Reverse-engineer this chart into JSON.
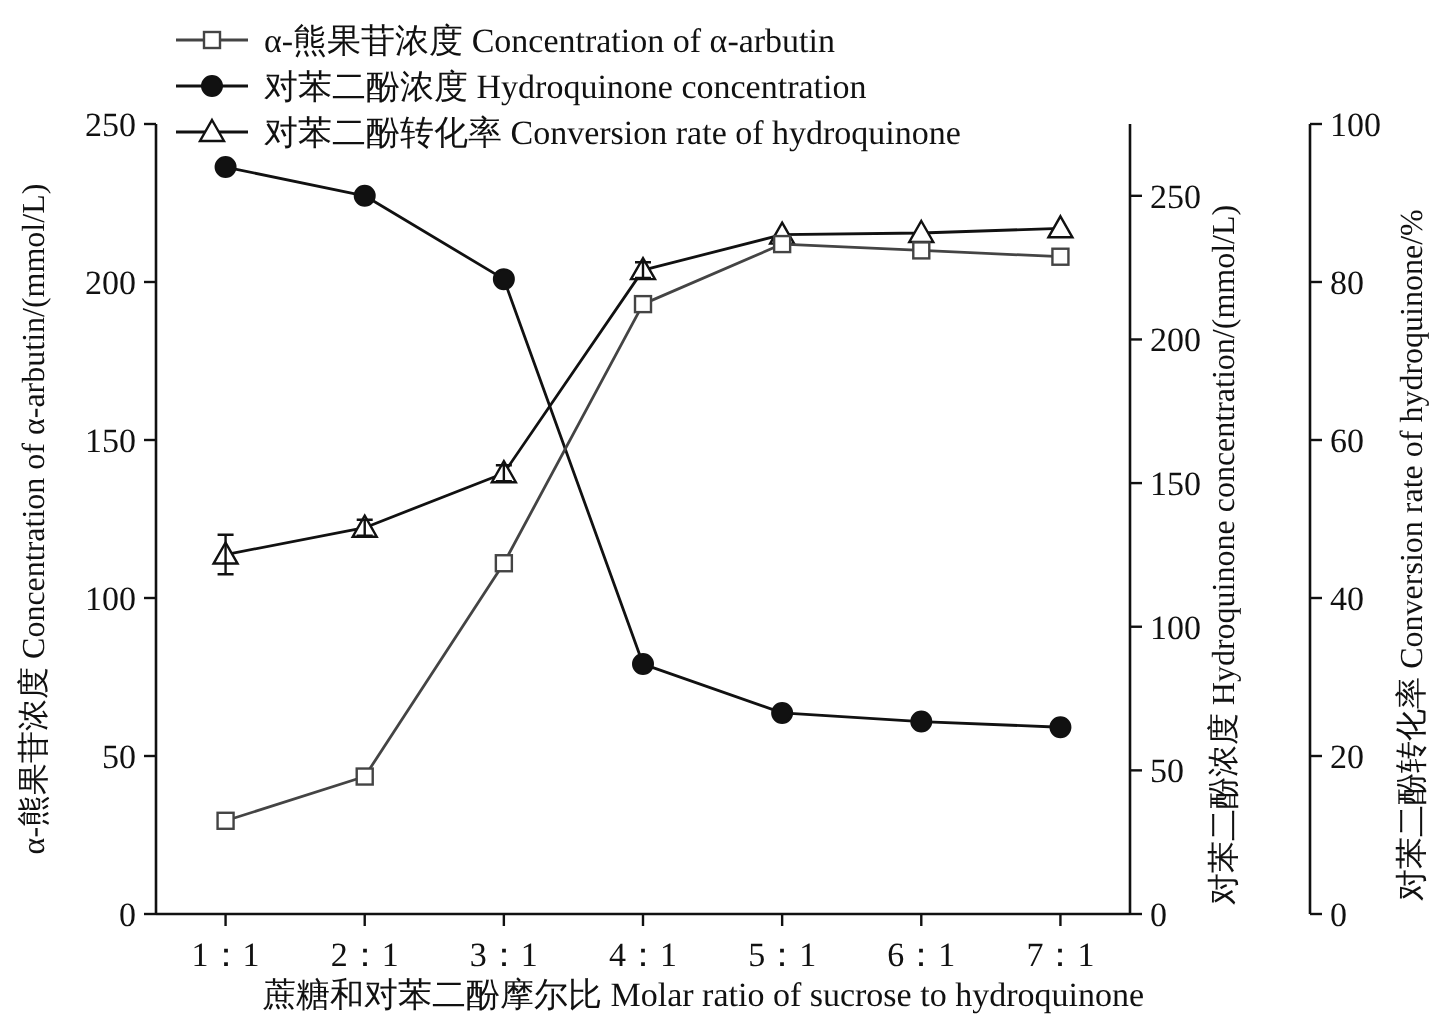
{
  "chart_data": {
    "type": "line",
    "categories": [
      "1：1",
      "2：1",
      "3：1",
      "4：1",
      "5：1",
      "6：1",
      "7：1"
    ],
    "xlabel": "蔗糖和对苯二酚摩尔比 Molar ratio of sucrose to hydroquinone",
    "ylabel": "α-熊果苷浓度 Concentration of α-arbutin/(mmol/L)",
    "y2label": "对苯二酚浓度 Hydroquinone concentration/(mmol/L)",
    "y3label": "对苯二酚转化率 Conversion rate of hydroquinone/%",
    "ylim": [
      0,
      250
    ],
    "yticks": [
      0,
      50,
      100,
      150,
      200,
      250
    ],
    "y2lim": [
      0,
      275
    ],
    "y2ticks": [
      0,
      50,
      100,
      150,
      200,
      250
    ],
    "y3lim": [
      0,
      100
    ],
    "y3ticks": [
      0,
      20,
      40,
      60,
      80,
      100
    ],
    "legend": "top left",
    "grid": false,
    "series": [
      {
        "name": "α-熊果苷浓度 Concentration of α-arbutin",
        "color": "#444444",
        "marker": "square",
        "axis": "y",
        "values": [
          29.5,
          43.5,
          111,
          193,
          212,
          210,
          208
        ]
      },
      {
        "name": "对苯二酚浓度 Hydroquinone concentration",
        "color": "#111111",
        "marker": "circle",
        "axis": "y2",
        "values": [
          260,
          250,
          221,
          87,
          70,
          67,
          65
        ]
      },
      {
        "name": "对苯二酚转化率 Conversion rate of hydroquinone",
        "color": "#111111",
        "marker": "triangle",
        "axis": "y3",
        "values": [
          45.5,
          48.9,
          55.8,
          81.5,
          86,
          86.2,
          86.8
        ],
        "errors": [
          2.5,
          1,
          1,
          1,
          null,
          null,
          null
        ]
      }
    ]
  }
}
